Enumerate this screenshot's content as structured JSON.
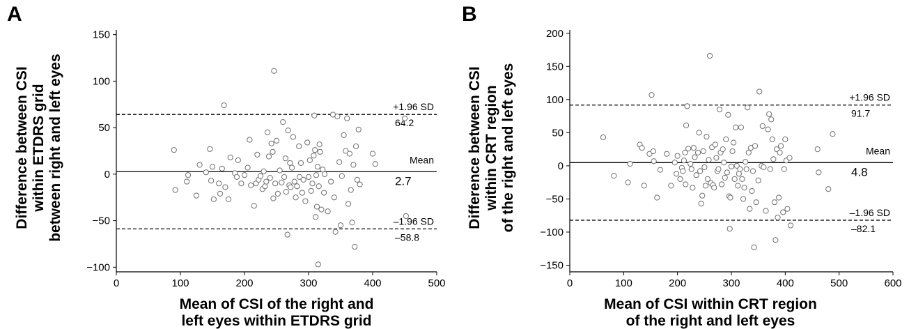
{
  "chart_data": [
    {
      "panel": "A",
      "type": "scatter",
      "xlabel": [
        "Mean of CSI of the right and",
        "left eyes within ETDRS grid"
      ],
      "ylabel": [
        "Difference between CSI",
        "within ETDRS grid",
        "between right and left eyes"
      ],
      "xlim": [
        0,
        500
      ],
      "ylim": [
        -105,
        155
      ],
      "xticks": [
        0,
        100,
        200,
        300,
        400,
        500
      ],
      "yticks": [
        -100,
        -50,
        0,
        50,
        100,
        150
      ],
      "mean": 2.7,
      "upper_loa": 64.2,
      "lower_loa": -58.8,
      "labels": {
        "upper": "+1.96 SD",
        "mean": "Mean",
        "lower": "–1.96 SD",
        "upper_value": "64.2",
        "mean_value": "2.7",
        "lower_value": "–58.8"
      },
      "points": [
        [
          90,
          26
        ],
        [
          92,
          -17
        ],
        [
          110,
          -8
        ],
        [
          112,
          -1
        ],
        [
          125,
          -23
        ],
        [
          130,
          10
        ],
        [
          140,
          2
        ],
        [
          146,
          27
        ],
        [
          148,
          -7
        ],
        [
          150,
          8
        ],
        [
          152,
          -27
        ],
        [
          160,
          -10
        ],
        [
          162,
          -21
        ],
        [
          165,
          6
        ],
        [
          168,
          74
        ],
        [
          170,
          -14
        ],
        [
          175,
          -27
        ],
        [
          178,
          18
        ],
        [
          185,
          1
        ],
        [
          188,
          -3
        ],
        [
          190,
          15
        ],
        [
          195,
          -10
        ],
        [
          200,
          -1
        ],
        [
          205,
          7
        ],
        [
          208,
          37
        ],
        [
          210,
          -12
        ],
        [
          215,
          -34
        ],
        [
          218,
          -10
        ],
        [
          220,
          21
        ],
        [
          222,
          -6
        ],
        [
          225,
          -2
        ],
        [
          228,
          -16
        ],
        [
          230,
          3
        ],
        [
          232,
          -13
        ],
        [
          234,
          -8
        ],
        [
          236,
          45
        ],
        [
          238,
          19
        ],
        [
          240,
          -4
        ],
        [
          242,
          33
        ],
        [
          244,
          24
        ],
        [
          245,
          -26
        ],
        [
          246,
          111
        ],
        [
          248,
          -10
        ],
        [
          250,
          36
        ],
        [
          252,
          -21
        ],
        [
          255,
          4
        ],
        [
          258,
          -9
        ],
        [
          260,
          56
        ],
        [
          262,
          -3
        ],
        [
          264,
          17
        ],
        [
          265,
          -19
        ],
        [
          267,
          -65
        ],
        [
          268,
          47
        ],
        [
          270,
          -12
        ],
        [
          271,
          12
        ],
        [
          272,
          -14
        ],
        [
          274,
          7
        ],
        [
          276,
          40
        ],
        [
          278,
          -8
        ],
        [
          280,
          -25
        ],
        [
          282,
          -13
        ],
        [
          285,
          30
        ],
        [
          286,
          -3
        ],
        [
          288,
          12
        ],
        [
          290,
          -20
        ],
        [
          292,
          -6
        ],
        [
          295,
          -29
        ],
        [
          298,
          34
        ],
        [
          300,
          -3
        ],
        [
          302,
          15
        ],
        [
          304,
          -18
        ],
        [
          306,
          -10
        ],
        [
          308,
          20
        ],
        [
          309,
          63
        ],
        [
          310,
          26
        ],
        [
          311,
          -46
        ],
        [
          312,
          -1
        ],
        [
          313,
          -35
        ],
        [
          314,
          8
        ],
        [
          315,
          -97
        ],
        [
          316,
          -13
        ],
        [
          317,
          32
        ],
        [
          318,
          24
        ],
        [
          320,
          -38
        ],
        [
          322,
          5
        ],
        [
          324,
          -20
        ],
        [
          325,
          0
        ],
        [
          330,
          -40
        ],
        [
          335,
          -8
        ],
        [
          338,
          64
        ],
        [
          340,
          -25
        ],
        [
          342,
          -62
        ],
        [
          345,
          62
        ],
        [
          348,
          13
        ],
        [
          350,
          -55
        ],
        [
          352,
          -2
        ],
        [
          355,
          42
        ],
        [
          358,
          25
        ],
        [
          360,
          60
        ],
        [
          362,
          -32
        ],
        [
          364,
          22
        ],
        [
          366,
          -17
        ],
        [
          368,
          -52
        ],
        [
          370,
          10
        ],
        [
          372,
          -78
        ],
        [
          374,
          30
        ],
        [
          376,
          -6
        ],
        [
          378,
          48
        ],
        [
          380,
          -11
        ],
        [
          400,
          22
        ],
        [
          404,
          11
        ],
        [
          450,
          60
        ],
        [
          452,
          -45
        ]
      ]
    },
    {
      "panel": "B",
      "type": "scatter",
      "xlabel": [
        "Mean of CSI within CRT region",
        "of the right and left eyes"
      ],
      "ylabel": [
        "Difference between CSI",
        "within CRT region",
        "of the right and left eyes"
      ],
      "xlim": [
        0,
        600
      ],
      "ylim": [
        -160,
        205
      ],
      "xticks": [
        0,
        100,
        200,
        300,
        400,
        500,
        600
      ],
      "yticks": [
        -150,
        -100,
        -50,
        0,
        50,
        100,
        150,
        200
      ],
      "mean": 4.8,
      "upper_loa": 91.7,
      "lower_loa": -82.1,
      "labels": {
        "upper": "+1.96 SD",
        "mean": "Mean",
        "lower": "–1.96 SD",
        "upper_value": "91.7",
        "mean_value": "4.8",
        "lower_value": "–82.1"
      },
      "points": [
        [
          62,
          43
        ],
        [
          82,
          -15
        ],
        [
          108,
          -25
        ],
        [
          112,
          3
        ],
        [
          130,
          32
        ],
        [
          134,
          27
        ],
        [
          138,
          -30
        ],
        [
          148,
          18
        ],
        [
          152,
          107
        ],
        [
          155,
          22
        ],
        [
          156,
          7
        ],
        [
          162,
          -48
        ],
        [
          168,
          -6
        ],
        [
          180,
          18
        ],
        [
          188,
          -30
        ],
        [
          195,
          5
        ],
        [
          198,
          -12
        ],
        [
          200,
          15
        ],
        [
          205,
          -20
        ],
        [
          208,
          -3
        ],
        [
          210,
          -8
        ],
        [
          212,
          8
        ],
        [
          214,
          20
        ],
        [
          215,
          -28
        ],
        [
          216,
          61
        ],
        [
          218,
          90
        ],
        [
          220,
          26
        ],
        [
          224,
          3
        ],
        [
          226,
          -5
        ],
        [
          228,
          -33
        ],
        [
          230,
          27
        ],
        [
          232,
          13
        ],
        [
          235,
          -14
        ],
        [
          238,
          20
        ],
        [
          240,
          50
        ],
        [
          242,
          -8
        ],
        [
          244,
          -57
        ],
        [
          246,
          -45
        ],
        [
          248,
          22
        ],
        [
          250,
          -2
        ],
        [
          252,
          -30
        ],
        [
          254,
          44
        ],
        [
          256,
          -20
        ],
        [
          258,
          9
        ],
        [
          260,
          166
        ],
        [
          262,
          -26
        ],
        [
          264,
          28
        ],
        [
          266,
          -29
        ],
        [
          268,
          -33
        ],
        [
          270,
          32
        ],
        [
          272,
          12
        ],
        [
          274,
          -8
        ],
        [
          276,
          -5
        ],
        [
          278,
          85
        ],
        [
          280,
          20
        ],
        [
          282,
          -28
        ],
        [
          284,
          25
        ],
        [
          286,
          5
        ],
        [
          288,
          -18
        ],
        [
          290,
          40
        ],
        [
          292,
          -10
        ],
        [
          294,
          77
        ],
        [
          296,
          -46
        ],
        [
          297,
          -95
        ],
        [
          298,
          -48
        ],
        [
          300,
          -1
        ],
        [
          302,
          22
        ],
        [
          304,
          35
        ],
        [
          306,
          -20
        ],
        [
          308,
          58
        ],
        [
          310,
          0
        ],
        [
          312,
          -30
        ],
        [
          314,
          -12
        ],
        [
          316,
          -5
        ],
        [
          318,
          58
        ],
        [
          320,
          -20
        ],
        [
          322,
          -50
        ],
        [
          324,
          -33
        ],
        [
          326,
          6
        ],
        [
          328,
          -5
        ],
        [
          330,
          88
        ],
        [
          332,
          20
        ],
        [
          334,
          -65
        ],
        [
          336,
          27
        ],
        [
          338,
          -38
        ],
        [
          340,
          -8
        ],
        [
          342,
          -123
        ],
        [
          344,
          30
        ],
        [
          346,
          -55
        ],
        [
          350,
          -22
        ],
        [
          352,
          112
        ],
        [
          356,
          0
        ],
        [
          358,
          60
        ],
        [
          360,
          -2
        ],
        [
          364,
          -68
        ],
        [
          368,
          55
        ],
        [
          370,
          78
        ],
        [
          372,
          -5
        ],
        [
          374,
          70
        ],
        [
          376,
          40
        ],
        [
          378,
          10
        ],
        [
          380,
          -55
        ],
        [
          382,
          -112
        ],
        [
          384,
          25
        ],
        [
          386,
          -78
        ],
        [
          388,
          -48
        ],
        [
          390,
          20
        ],
        [
          392,
          30
        ],
        [
          396,
          -70
        ],
        [
          398,
          -5
        ],
        [
          400,
          40
        ],
        [
          402,
          8
        ],
        [
          404,
          -65
        ],
        [
          408,
          12
        ],
        [
          410,
          -90
        ],
        [
          460,
          25
        ],
        [
          462,
          -10
        ],
        [
          480,
          -35
        ],
        [
          488,
          48
        ]
      ]
    }
  ]
}
